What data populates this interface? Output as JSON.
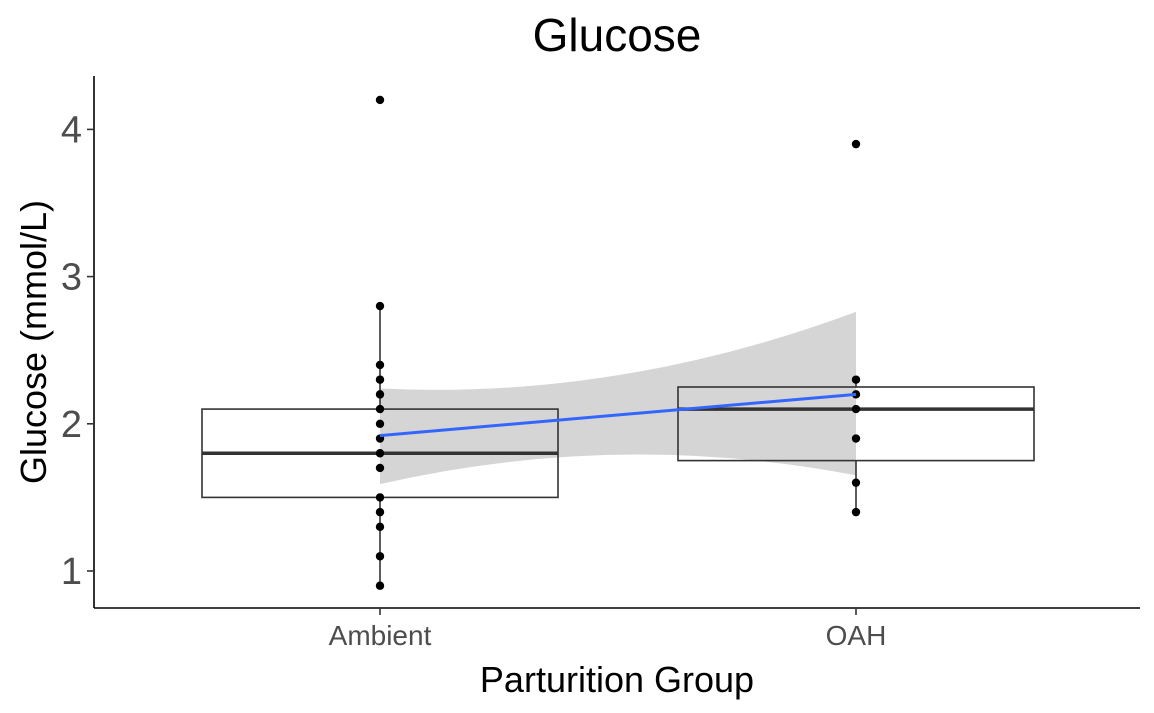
{
  "chart_data": {
    "type": "box",
    "title": "Glucose",
    "xlabel": "Parturition Group",
    "ylabel": "Glucose (mmol/L)",
    "categories": [
      "Ambient",
      "OAH"
    ],
    "ylim": [
      0.75,
      4.35
    ],
    "yticks": [
      1,
      2,
      3,
      4
    ],
    "grid": false,
    "legend": "none",
    "boxes": [
      {
        "category": "Ambient",
        "whisker_low": 0.9,
        "q1": 1.5,
        "median": 1.8,
        "q3": 2.1,
        "whisker_high": 2.8
      },
      {
        "category": "OAH",
        "whisker_low": 1.4,
        "q1": 1.75,
        "median": 2.1,
        "q3": 2.25,
        "whisker_high": 2.3
      }
    ],
    "points": [
      {
        "category": "Ambient",
        "values": [
          4.2,
          2.8,
          2.4,
          2.3,
          2.2,
          2.1,
          2.0,
          1.9,
          1.8,
          1.7,
          1.5,
          1.4,
          1.3,
          1.1,
          0.9
        ]
      },
      {
        "category": "OAH",
        "values": [
          3.9,
          2.3,
          2.2,
          2.1,
          1.9,
          1.6,
          1.4
        ]
      }
    ],
    "trend": {
      "method": "lm",
      "start": {
        "category": "Ambient",
        "y": 1.92
      },
      "end": {
        "category": "OAH",
        "y": 2.2
      },
      "ci_lower": [
        1.59,
        1.65
      ],
      "ci_upper": [
        2.24,
        2.76
      ]
    },
    "colors": {
      "trend_line": "#3366FF",
      "confidence_band": "#D3D3D3",
      "points": "#000000",
      "box": "#333333",
      "tick_labels": "#4D4D4D"
    }
  }
}
